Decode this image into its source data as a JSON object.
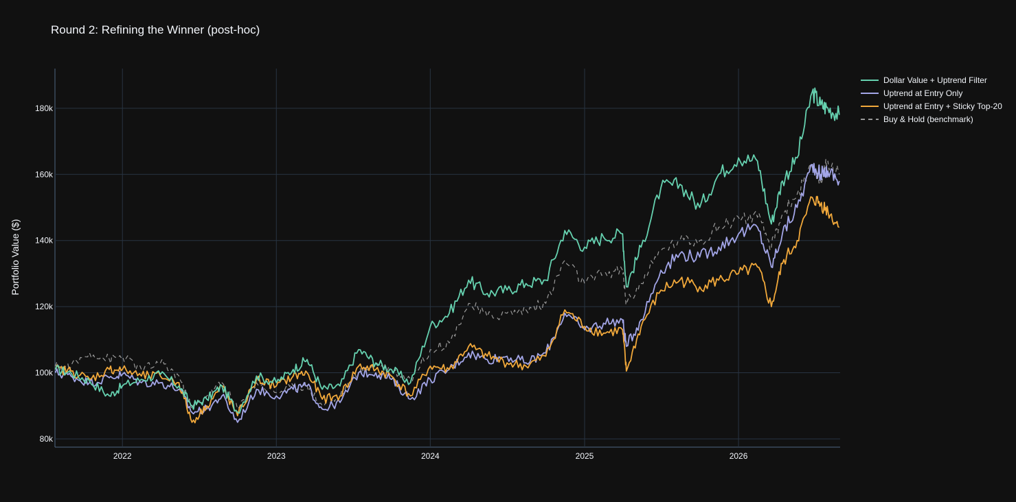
{
  "chart_data": {
    "type": "line",
    "title": "Round 2: Refining the Winner (post-hoc)",
    "xlabel": "",
    "ylabel": "Portfolio Value ($)",
    "xlim": [
      "2021-07-25",
      "2026-08-30"
    ],
    "ylim": [
      77500,
      192000
    ],
    "x_ticks": [
      "2022",
      "2023",
      "2024",
      "2025",
      "2026"
    ],
    "y_ticks": [
      {
        "value": 80000,
        "label": "80k"
      },
      {
        "value": 100000,
        "label": "100k"
      },
      {
        "value": 120000,
        "label": "120k"
      },
      {
        "value": 140000,
        "label": "140k"
      },
      {
        "value": 160000,
        "label": "160k"
      },
      {
        "value": 180000,
        "label": "180k"
      }
    ],
    "grid": true,
    "legend_position": "top-right-outside",
    "series": [
      {
        "name": "Dollar Value + Uptrend Filter",
        "color": "#66d2b0",
        "dash": "solid",
        "x": [
          "2021-07-26",
          "2021-09-01",
          "2021-10-15",
          "2021-12-01",
          "2022-01-01",
          "2022-02-15",
          "2022-04-01",
          "2022-05-15",
          "2022-06-15",
          "2022-07-20",
          "2022-08-25",
          "2022-10-01",
          "2022-11-15",
          "2023-01-01",
          "2023-02-10",
          "2023-03-15",
          "2023-04-20",
          "2023-06-01",
          "2023-07-15",
          "2023-08-25",
          "2023-10-01",
          "2023-11-15",
          "2024-01-01",
          "2024-02-15",
          "2024-04-01",
          "2024-05-15",
          "2024-07-01",
          "2024-08-15",
          "2024-10-01",
          "2024-11-15",
          "2025-01-01",
          "2025-02-15",
          "2025-04-01",
          "2025-04-10",
          "2025-05-15",
          "2025-07-01",
          "2025-08-15",
          "2025-10-01",
          "2025-11-15",
          "2026-01-01",
          "2026-02-15",
          "2026-03-20",
          "2026-04-15",
          "2026-05-20",
          "2026-06-25",
          "2026-07-15",
          "2026-08-01",
          "2026-08-28"
        ],
        "values": [
          101000,
          100000,
          97500,
          93000,
          96000,
          98000,
          99500,
          96000,
          90000,
          92000,
          96000,
          88000,
          99000,
          97000,
          101000,
          104000,
          95000,
          96000,
          107000,
          103000,
          101000,
          97000,
          114000,
          118000,
          128000,
          124000,
          125000,
          127000,
          128000,
          143000,
          138000,
          141000,
          142000,
          126000,
          138000,
          156000,
          157000,
          150000,
          160000,
          165000,
          164000,
          145000,
          158000,
          165000,
          185000,
          181000,
          180000,
          178000
        ]
      },
      {
        "name": "Uptrend at Entry Only",
        "color": "#a3a6e8",
        "dash": "solid",
        "x": [
          "2021-07-26",
          "2021-09-01",
          "2021-10-15",
          "2021-12-01",
          "2022-01-01",
          "2022-02-15",
          "2022-04-01",
          "2022-05-15",
          "2022-06-15",
          "2022-07-20",
          "2022-08-25",
          "2022-10-01",
          "2022-11-15",
          "2023-01-01",
          "2023-02-10",
          "2023-03-15",
          "2023-04-20",
          "2023-06-01",
          "2023-07-15",
          "2023-08-25",
          "2023-10-01",
          "2023-11-15",
          "2024-01-01",
          "2024-02-15",
          "2024-04-01",
          "2024-05-15",
          "2024-07-01",
          "2024-08-15",
          "2024-10-01",
          "2024-11-15",
          "2025-01-01",
          "2025-02-15",
          "2025-04-01",
          "2025-04-10",
          "2025-05-15",
          "2025-07-01",
          "2025-08-15",
          "2025-10-01",
          "2025-11-15",
          "2026-01-01",
          "2026-02-15",
          "2026-03-20",
          "2026-04-15",
          "2026-05-20",
          "2026-06-25",
          "2026-07-15",
          "2026-08-01",
          "2026-08-28"
        ],
        "values": [
          100000,
          99000,
          97000,
          98500,
          99500,
          97000,
          97000,
          95000,
          88000,
          89000,
          93000,
          85000,
          95000,
          93000,
          95000,
          96000,
          89000,
          91000,
          100000,
          100000,
          98000,
          92000,
          98000,
          101000,
          106000,
          104000,
          105000,
          103000,
          106000,
          118000,
          113000,
          115000,
          116000,
          108000,
          116000,
          131000,
          136000,
          135000,
          138000,
          142000,
          144000,
          132000,
          142000,
          150000,
          163000,
          160000,
          161000,
          158000
        ]
      },
      {
        "name": "Uptrend at Entry + Sticky Top-20",
        "color": "#f2a93b",
        "dash": "solid",
        "x": [
          "2021-07-26",
          "2021-09-01",
          "2021-10-15",
          "2021-12-01",
          "2022-01-01",
          "2022-02-15",
          "2022-04-01",
          "2022-05-15",
          "2022-06-15",
          "2022-07-20",
          "2022-08-25",
          "2022-10-01",
          "2022-11-15",
          "2023-01-01",
          "2023-02-10",
          "2023-03-15",
          "2023-04-20",
          "2023-06-01",
          "2023-07-15",
          "2023-08-25",
          "2023-10-01",
          "2023-11-15",
          "2024-01-01",
          "2024-02-15",
          "2024-04-01",
          "2024-05-15",
          "2024-07-01",
          "2024-08-15",
          "2024-10-01",
          "2024-11-15",
          "2025-01-01",
          "2025-02-15",
          "2025-04-01",
          "2025-04-10",
          "2025-05-15",
          "2025-07-01",
          "2025-08-15",
          "2025-10-01",
          "2025-11-15",
          "2026-01-01",
          "2026-02-15",
          "2026-03-20",
          "2026-04-15",
          "2026-05-20",
          "2026-06-25",
          "2026-07-15",
          "2026-08-01",
          "2026-08-28"
        ],
        "values": [
          101000,
          100500,
          98000,
          101000,
          101000,
          99000,
          99000,
          97000,
          85000,
          90000,
          96000,
          87000,
          98000,
          96000,
          99000,
          100000,
          92000,
          93000,
          102000,
          101000,
          99000,
          93000,
          102000,
          101000,
          108000,
          105000,
          103000,
          102000,
          105000,
          119000,
          114000,
          112000,
          113000,
          100500,
          114000,
          125000,
          128000,
          126000,
          128000,
          130000,
          132000,
          120000,
          133000,
          140000,
          153000,
          151000,
          149000,
          144000
        ]
      },
      {
        "name": "Buy & Hold (benchmark)",
        "color": "#9a9a9a",
        "dash": "dash",
        "x": [
          "2021-07-26",
          "2021-09-01",
          "2021-10-15",
          "2021-12-01",
          "2022-01-01",
          "2022-02-15",
          "2022-04-01",
          "2022-05-15",
          "2022-06-15",
          "2022-07-20",
          "2022-08-25",
          "2022-10-01",
          "2022-11-15",
          "2023-01-01",
          "2023-02-10",
          "2023-03-15",
          "2023-04-20",
          "2023-06-01",
          "2023-07-15",
          "2023-08-25",
          "2023-10-01",
          "2023-11-15",
          "2024-01-01",
          "2024-02-15",
          "2024-04-01",
          "2024-05-15",
          "2024-07-01",
          "2024-08-15",
          "2024-10-01",
          "2024-11-15",
          "2025-01-01",
          "2025-02-15",
          "2025-04-01",
          "2025-04-10",
          "2025-05-15",
          "2025-07-01",
          "2025-08-15",
          "2025-10-01",
          "2025-11-15",
          "2026-01-01",
          "2026-02-15",
          "2026-03-20",
          "2026-04-15",
          "2026-05-20",
          "2026-06-25",
          "2026-07-15",
          "2026-08-01",
          "2026-08-28"
        ],
        "values": [
          102000,
          102000,
          106000,
          104000,
          105000,
          101000,
          103000,
          99000,
          89000,
          93000,
          97000,
          89000,
          97000,
          94000,
          96000,
          96000,
          90000,
          93000,
          100000,
          103000,
          101000,
          98000,
          107000,
          109000,
          121000,
          117000,
          118000,
          119000,
          121000,
          134000,
          127000,
          130000,
          131000,
          121000,
          127000,
          137000,
          140000,
          140000,
          144000,
          147000,
          147000,
          138000,
          148000,
          154000,
          162000,
          158000,
          164000,
          160000
        ]
      }
    ]
  }
}
